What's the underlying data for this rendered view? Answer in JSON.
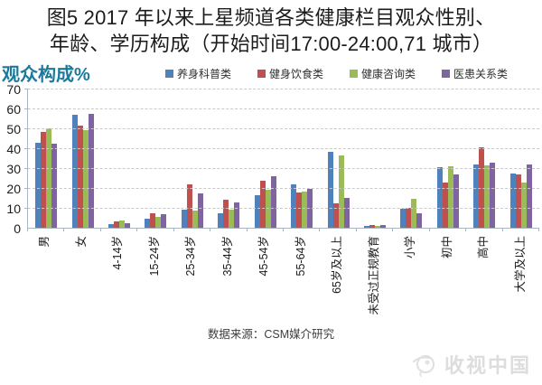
{
  "title": {
    "line1": "图5 2017 年以来上星频道各类健康栏目观众性别、",
    "line2": "年龄、学历构成（开始时间17:00-24:00,71 城市）"
  },
  "y_axis_title": "观众构成%",
  "footer": {
    "source": "数据来源：CSM媒介研究"
  },
  "watermark": {
    "label": "收视中国",
    "icon": "tv-swirl-logo"
  },
  "colors": {
    "title_text": "#1C1C1C",
    "y_axis_title": "#1B7A9C",
    "axis_line": "#A9B5C0",
    "gridline": "#C9C9C9",
    "watermark_gray": "#DADADA"
  },
  "chart_data": {
    "type": "bar",
    "title": "图5 2017 年以来上星频道各类健康栏目观众性别、年龄、学历构成（开始时间17:00-24:00,71 城市）",
    "xlabel": "",
    "ylabel": "观众构成%",
    "ylim": [
      0,
      70
    ],
    "yticks": [
      0,
      10,
      20,
      30,
      40,
      50,
      60,
      70
    ],
    "grid": "horizontal-dashed",
    "legend_position": "top",
    "categories": [
      "男",
      "女",
      "4-14岁",
      "15-24岁",
      "25-34岁",
      "35-44岁",
      "45-54岁",
      "55-64岁",
      "65岁及以上",
      "未受过正规教育",
      "小学",
      "初中",
      "高中",
      "大学及以上"
    ],
    "series": [
      {
        "name": "养身科普类",
        "color": "#4F81BD",
        "values": [
          43,
          57,
          2,
          4.5,
          9,
          7.5,
          16.5,
          22,
          38.5,
          1,
          9.5,
          30.5,
          32,
          27.5
        ]
      },
      {
        "name": "健身饮食类",
        "color": "#C0504D",
        "values": [
          48.5,
          51.5,
          3,
          7.5,
          22,
          14,
          24,
          18,
          12.5,
          1.5,
          10,
          23,
          40.5,
          27
        ]
      },
      {
        "name": "健康咨询类",
        "color": "#9BBB59",
        "values": [
          50.5,
          49.5,
          3.5,
          5.5,
          8.5,
          9,
          19,
          18.5,
          36.5,
          1,
          14.5,
          31,
          31.5,
          23
        ]
      },
      {
        "name": "医患关系类",
        "color": "#8064A2",
        "values": [
          42.5,
          57.5,
          2.5,
          7,
          17.5,
          13,
          26,
          19.5,
          15,
          1.5,
          7.5,
          27,
          33,
          32
        ]
      }
    ],
    "source_note": "数据来源：CSM媒介研究"
  }
}
